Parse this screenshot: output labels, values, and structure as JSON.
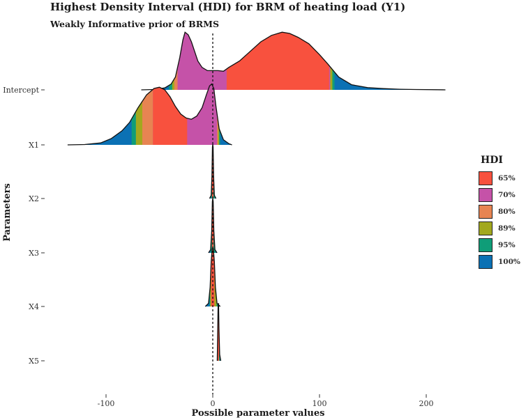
{
  "chart_data": {
    "type": "ridgeline",
    "title": "Highest Density Interval (HDI) for BRM of heating load (Y1)",
    "subtitle": "Weakly Informative prior of BRMS",
    "xlabel": "Possible parameter values",
    "ylabel": "Parameters",
    "xlim": [
      -150,
      222
    ],
    "x_ticks": [
      -100,
      0,
      100,
      200
    ],
    "reference_line_x": 0,
    "legend": {
      "title": "HDI",
      "placement": "right",
      "entries": [
        {
          "label": "65%",
          "color": "#F8513E"
        },
        {
          "label": "70%",
          "color": "#C552A8"
        },
        {
          "label": "80%",
          "color": "#E78452"
        },
        {
          "label": "89%",
          "color": "#A2A81E"
        },
        {
          "label": "95%",
          "color": "#0F9D78"
        },
        {
          "label": "100%",
          "color": "#0B71B4"
        }
      ]
    },
    "series": [
      {
        "name": "Intercept",
        "curve": [
          [
            -67,
            0
          ],
          [
            -55,
            0.005
          ],
          [
            -45,
            0.03
          ],
          [
            -39,
            0.09
          ],
          [
            -35,
            0.2
          ],
          [
            -31,
            0.5
          ],
          [
            -28,
            0.78
          ],
          [
            -26,
            0.9
          ],
          [
            -23,
            0.86
          ],
          [
            -20,
            0.75
          ],
          [
            -17,
            0.6
          ],
          [
            -14,
            0.45
          ],
          [
            -10,
            0.35
          ],
          [
            -5,
            0.3
          ],
          [
            0,
            0.3
          ],
          [
            5,
            0.3
          ],
          [
            10,
            0.29
          ],
          [
            15,
            0.35
          ],
          [
            25,
            0.45
          ],
          [
            35,
            0.6
          ],
          [
            45,
            0.75
          ],
          [
            55,
            0.85
          ],
          [
            65,
            0.9
          ],
          [
            72,
            0.88
          ],
          [
            80,
            0.82
          ],
          [
            90,
            0.72
          ],
          [
            100,
            0.55
          ],
          [
            108,
            0.4
          ],
          [
            118,
            0.2
          ],
          [
            130,
            0.08
          ],
          [
            145,
            0.035
          ],
          [
            160,
            0.02
          ],
          [
            175,
            0.01
          ],
          [
            190,
            0.005
          ],
          [
            210,
            0.002
          ],
          [
            218,
            0
          ]
        ],
        "bands": [
          {
            "hdi": "100%",
            "from": -67,
            "to": 218
          },
          {
            "hdi": "95%",
            "from": -41,
            "to": 114
          },
          {
            "hdi": "89%",
            "from": -38,
            "to": 112
          },
          {
            "hdi": "80%",
            "from": -36,
            "to": 110
          },
          {
            "hdi": "70%",
            "from": -33,
            "to": 110
          },
          {
            "hdi": "65%",
            "from": 13,
            "to": 109
          }
        ]
      },
      {
        "name": "X1",
        "curve": [
          [
            -136,
            0
          ],
          [
            -120,
            0.005
          ],
          [
            -105,
            0.03
          ],
          [
            -95,
            0.1
          ],
          [
            -85,
            0.22
          ],
          [
            -78,
            0.35
          ],
          [
            -70,
            0.58
          ],
          [
            -62,
            0.78
          ],
          [
            -55,
            0.88
          ],
          [
            -50,
            0.9
          ],
          [
            -45,
            0.86
          ],
          [
            -40,
            0.75
          ],
          [
            -35,
            0.6
          ],
          [
            -30,
            0.48
          ],
          [
            -25,
            0.42
          ],
          [
            -20,
            0.4
          ],
          [
            -15,
            0.45
          ],
          [
            -10,
            0.58
          ],
          [
            -6,
            0.78
          ],
          [
            -3,
            0.92
          ],
          [
            -1,
            0.95
          ],
          [
            1,
            0.88
          ],
          [
            3,
            0.6
          ],
          [
            6,
            0.25
          ],
          [
            10,
            0.08
          ],
          [
            15,
            0.02
          ],
          [
            18,
            0
          ]
        ],
        "bands": [
          {
            "hdi": "100%",
            "from": -136,
            "to": 18
          },
          {
            "hdi": "95%",
            "from": -76,
            "to": 7
          },
          {
            "hdi": "89%",
            "from": -72,
            "to": 6
          },
          {
            "hdi": "80%",
            "from": -66,
            "to": 5
          },
          {
            "hdi": "70%",
            "from": -56,
            "to": 4
          },
          {
            "hdi": "65%",
            "from": -56,
            "to": -24
          }
        ]
      },
      {
        "name": "X2",
        "curve": [
          [
            -3,
            0
          ],
          [
            -1.5,
            0.05
          ],
          [
            -0.8,
            0.35
          ],
          [
            -0.3,
            0.8
          ],
          [
            0,
            0.85
          ],
          [
            0.3,
            0.8
          ],
          [
            0.8,
            0.35
          ],
          [
            1.5,
            0.05
          ],
          [
            3,
            0
          ]
        ],
        "bands": [
          {
            "hdi": "100%",
            "from": -3,
            "to": 3
          },
          {
            "hdi": "95%",
            "from": -1.5,
            "to": 2
          },
          {
            "hdi": "65%",
            "from": -0.7,
            "to": 0.7
          }
        ]
      },
      {
        "name": "X3",
        "curve": [
          [
            -4,
            0
          ],
          [
            -2,
            0.05
          ],
          [
            -1,
            0.35
          ],
          [
            -0.4,
            0.8
          ],
          [
            0,
            0.85
          ],
          [
            0.4,
            0.8
          ],
          [
            1,
            0.35
          ],
          [
            2,
            0.05
          ],
          [
            4,
            0
          ]
        ],
        "bands": [
          {
            "hdi": "100%",
            "from": -4,
            "to": 4
          },
          {
            "hdi": "95%",
            "from": -2,
            "to": 2.5
          },
          {
            "hdi": "65%",
            "from": -0.8,
            "to": 0.8
          }
        ]
      },
      {
        "name": "X4",
        "curve": [
          [
            -7,
            0
          ],
          [
            -4,
            0.05
          ],
          [
            -2.5,
            0.3
          ],
          [
            -1.5,
            0.7
          ],
          [
            -0.5,
            0.9
          ],
          [
            0.5,
            0.9
          ],
          [
            1.5,
            0.7
          ],
          [
            2.5,
            0.3
          ],
          [
            4,
            0.05
          ],
          [
            7,
            0
          ]
        ],
        "bands": [
          {
            "hdi": "100%",
            "from": -7,
            "to": 7
          },
          {
            "hdi": "95%",
            "from": -3,
            "to": 5
          },
          {
            "hdi": "89%",
            "from": -2.5,
            "to": 3.5
          },
          {
            "hdi": "65%",
            "from": -1.5,
            "to": 1.5
          }
        ]
      },
      {
        "name": "X5",
        "curve": [
          [
            4.2,
            0
          ],
          [
            4.6,
            0.4
          ],
          [
            5,
            0.85
          ],
          [
            5.4,
            0.9
          ],
          [
            5.8,
            0.5
          ],
          [
            6.5,
            0.1
          ],
          [
            7.5,
            0
          ]
        ],
        "bands": [
          {
            "hdi": "100%",
            "from": 4.2,
            "to": 7.5
          },
          {
            "hdi": "95%",
            "from": 4.4,
            "to": 6.8
          },
          {
            "hdi": "65%",
            "from": 4.7,
            "to": 5.9
          }
        ]
      }
    ]
  }
}
